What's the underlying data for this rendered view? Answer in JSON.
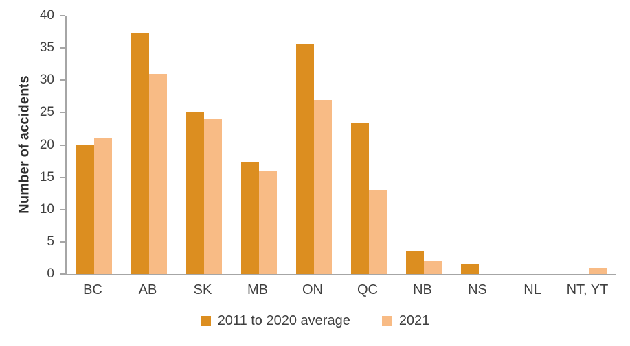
{
  "chart_data": {
    "type": "bar",
    "title": "",
    "ylabel": "Number of accidents",
    "xlabel": "",
    "ylim": [
      0,
      40
    ],
    "yticks": [
      0,
      5,
      10,
      15,
      20,
      25,
      30,
      35,
      40
    ],
    "grid": false,
    "legend_position": "bottom",
    "axis_color": "#a6a6a6",
    "text_color": "#3f3f3f",
    "categories": [
      "BC",
      "AB",
      "SK",
      "MB",
      "ON",
      "QC",
      "NB",
      "NS",
      "NL",
      "NT, YT"
    ],
    "series": [
      {
        "name": "2011 to 2020 average",
        "color": "#dc8e20",
        "values": [
          19.9,
          37.4,
          25.2,
          17.4,
          35.7,
          23.5,
          3.5,
          1.6,
          0,
          0
        ]
      },
      {
        "name": "2021",
        "color": "#f8bb85",
        "values": [
          21,
          31,
          24,
          16,
          27,
          13,
          2,
          0,
          0,
          1
        ]
      }
    ]
  }
}
